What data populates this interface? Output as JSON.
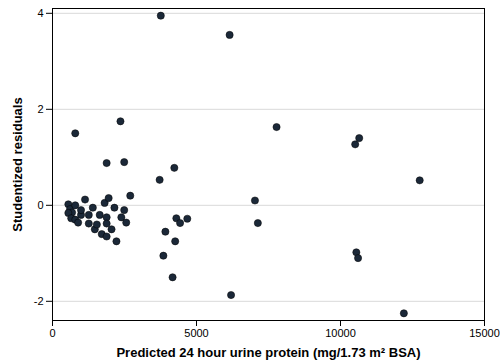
{
  "chart_data": {
    "type": "scatter",
    "x_label": "Predicted 24 hour urine protein (mg/1.73 m² BSA)",
    "y_label": "Studentized residuals",
    "x": [
      3760,
      6150,
      790,
      2360,
      1880,
      2490,
      2700,
      3720,
      4230,
      7780,
      7030,
      7130,
      10510,
      10650,
      10550,
      10610,
      12750,
      12200,
      6200,
      4170,
      4260,
      3850,
      3920,
      4300,
      4430,
      4680,
      550,
      610,
      680,
      790,
      550,
      650,
      790,
      890,
      990,
      990,
      1130,
      1260,
      1260,
      1400,
      1470,
      1640,
      1710,
      1810,
      1880,
      1880,
      2050,
      1880,
      2150,
      2220,
      1950,
      2390,
      2560,
      2490,
      1540
    ],
    "values": [
      3.95,
      3.55,
      1.5,
      1.75,
      0.88,
      0.9,
      0.2,
      0.53,
      0.78,
      1.63,
      0.1,
      -0.37,
      1.27,
      1.4,
      -0.98,
      -1.1,
      0.52,
      -2.25,
      -1.87,
      -1.5,
      -0.75,
      -1.05,
      -0.55,
      -0.27,
      -0.37,
      -0.28,
      0.02,
      -0.08,
      -0.15,
      0.0,
      -0.16,
      -0.27,
      -0.3,
      -0.36,
      -0.2,
      -0.1,
      0.12,
      -0.2,
      -0.38,
      -0.05,
      -0.5,
      -0.2,
      -0.6,
      0.05,
      -0.25,
      -0.38,
      -0.5,
      -0.65,
      -0.05,
      -0.75,
      0.15,
      -0.25,
      -0.36,
      -0.1,
      -0.4
    ],
    "color": "#1b2838",
    "marker": "circle",
    "xlim": [
      0,
      15000
    ],
    "xticks": [
      0,
      5000,
      10000,
      15000
    ],
    "ylim": [
      -2.4,
      4.1
    ],
    "yticks": [
      -2,
      0,
      2,
      4
    ],
    "grid": true
  }
}
